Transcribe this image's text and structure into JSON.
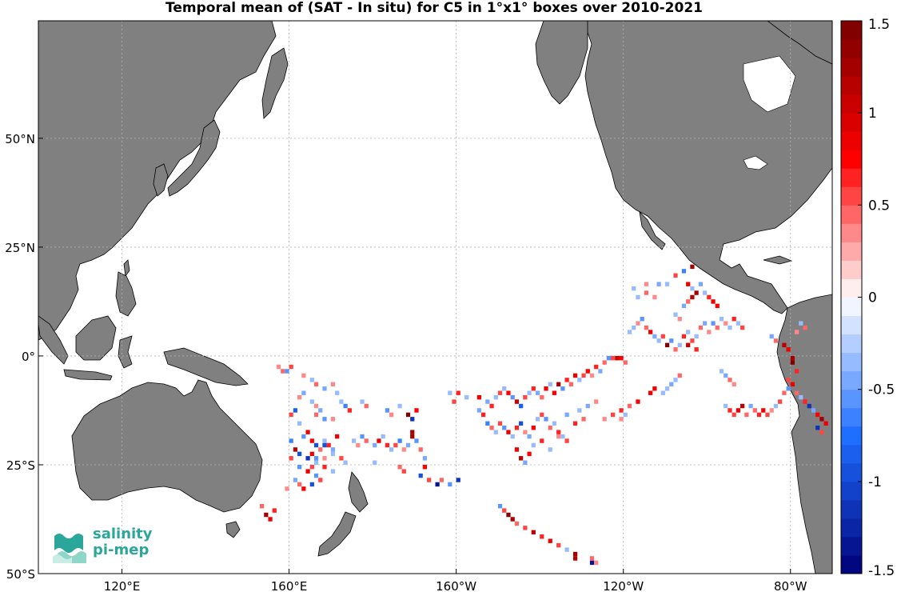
{
  "chart_data": {
    "type": "heatmap",
    "title": "Temporal mean of (SAT - In situ) for C5 in 1°x1° boxes over 2010-2021",
    "map_extent": {
      "lon": [
        100,
        290
      ],
      "lat": [
        -50,
        77
      ]
    },
    "x_ticks": [
      {
        "lon": 120,
        "label": "120°E"
      },
      {
        "lon": 160,
        "label": "160°E"
      },
      {
        "lon": 200,
        "label": "160°W"
      },
      {
        "lon": 240,
        "label": "120°W"
      },
      {
        "lon": 280,
        "label": "80°W"
      }
    ],
    "y_ticks": [
      {
        "lat": 50,
        "label": "50°N"
      },
      {
        "lat": 25,
        "label": "25°N"
      },
      {
        "lat": 0,
        "label": "0°"
      },
      {
        "lat": -25,
        "label": "25°S"
      },
      {
        "lat": -50,
        "label": "50°S"
      }
    ],
    "grid": true,
    "land_color": "#808080",
    "colorbar": {
      "range": [
        -1.5,
        1.5
      ],
      "ticks": [
        "-1.5",
        "-1",
        "-0.5",
        "0",
        "0.5",
        "1",
        "1.5"
      ],
      "tick_values": [
        -1.5,
        -1,
        -0.5,
        0,
        0.5,
        1,
        1.5
      ],
      "levels": 30,
      "colormap": "blue-white-red"
    },
    "boxes": [
      [
        165,
        -11,
        -0.3
      ],
      [
        166,
        -12,
        0.3
      ],
      [
        167,
        -13,
        -0.5
      ],
      [
        166,
        -14,
        0.4
      ],
      [
        168,
        -15,
        -0.6
      ],
      [
        170,
        -15,
        0.3
      ],
      [
        171,
        -9,
        -0.3
      ],
      [
        172,
        -11,
        -0.4
      ],
      [
        174,
        -13,
        0.6
      ],
      [
        173,
        -12,
        -0.7
      ],
      [
        163,
        -9,
        -0.5
      ],
      [
        162,
        -10,
        0.3
      ],
      [
        161,
        -13,
        -0.8
      ],
      [
        160,
        -14,
        0.5
      ],
      [
        162,
        -16,
        -0.4
      ],
      [
        164,
        -18,
        0.9
      ],
      [
        163,
        -19,
        -0.6
      ],
      [
        165,
        -20,
        0.7
      ],
      [
        166,
        -21,
        -0.9
      ],
      [
        167,
        -22,
        0.4
      ],
      [
        168,
        -20,
        -0.3
      ],
      [
        169,
        -21,
        0.6
      ],
      [
        170,
        -22,
        -0.5
      ],
      [
        171,
        -19,
        0.8
      ],
      [
        160,
        -20,
        -0.7
      ],
      [
        161,
        -22,
        1.1
      ],
      [
        162,
        -23,
        -1.0
      ],
      [
        160,
        -24,
        0.5
      ],
      [
        162,
        -26,
        -0.6
      ],
      [
        164,
        -27,
        0.8
      ],
      [
        166,
        -25,
        -0.4
      ],
      [
        168,
        -26,
        0.6
      ],
      [
        170,
        -27,
        -0.3
      ],
      [
        167,
        -29,
        0.5
      ],
      [
        165,
        -30,
        -0.9
      ],
      [
        163,
        -31,
        0.7
      ],
      [
        161,
        -29,
        -0.5
      ],
      [
        162,
        -30,
        0.4
      ],
      [
        159,
        -31,
        0.3
      ],
      [
        164,
        -24,
        -1.2
      ],
      [
        165,
        -23,
        0.9
      ],
      [
        166,
        -24,
        -0.6
      ],
      [
        168,
        -24,
        0.3
      ],
      [
        170,
        -23,
        -0.4
      ],
      [
        172,
        -24,
        0.5
      ],
      [
        173,
        -25,
        -0.3
      ],
      [
        175,
        -20,
        -0.4
      ],
      [
        176,
        -21,
        0.3
      ],
      [
        177,
        -19,
        -0.6
      ],
      [
        178,
        -20,
        0.4
      ],
      [
        180,
        -21,
        -0.5
      ],
      [
        181,
        -20,
        0.8
      ],
      [
        182,
        -19,
        -0.3
      ],
      [
        183,
        -21,
        0.6
      ],
      [
        184,
        -22,
        -0.4
      ],
      [
        185,
        -21,
        0.5
      ],
      [
        186,
        -20,
        -0.7
      ],
      [
        187,
        -22,
        0.3
      ],
      [
        188,
        -21,
        -0.5
      ],
      [
        189,
        -19,
        1.3
      ],
      [
        189,
        -18,
        1.2
      ],
      [
        190,
        -20,
        -0.6
      ],
      [
        191,
        -22,
        0.4
      ],
      [
        192,
        -24,
        -0.5
      ],
      [
        192,
        -26,
        0.7
      ],
      [
        191,
        -28,
        -0.9
      ],
      [
        193,
        -29,
        0.5
      ],
      [
        195,
        -30,
        -1.3
      ],
      [
        196,
        -29,
        0.4
      ],
      [
        198,
        -30,
        -0.6
      ],
      [
        200,
        -29,
        -1.1
      ],
      [
        186,
        -26,
        0.4
      ],
      [
        187,
        -27,
        0.5
      ],
      [
        180,
        -25,
        -0.3
      ],
      [
        157,
        -3,
        0.3
      ],
      [
        158,
        -4,
        0.4
      ],
      [
        159,
        -4,
        -0.6
      ],
      [
        160,
        -3,
        0.5
      ],
      [
        163,
        -5,
        0.3
      ],
      [
        165,
        -6,
        -0.3
      ],
      [
        166,
        -7,
        0.4
      ],
      [
        168,
        -8,
        -0.5
      ],
      [
        170,
        -7,
        0.3
      ],
      [
        177,
        -11,
        -0.3
      ],
      [
        178,
        -12,
        0.4
      ],
      [
        183,
        -13,
        -0.6
      ],
      [
        184,
        -14,
        0.3
      ],
      [
        186,
        -12,
        -0.4
      ],
      [
        188,
        -14,
        1.4
      ],
      [
        189,
        -15,
        -1.2
      ],
      [
        190,
        -13,
        0.7
      ],
      [
        199,
        -11,
        0.5
      ],
      [
        198,
        -9,
        -0.4
      ],
      [
        200,
        -9,
        0.6
      ],
      [
        202,
        -10,
        -0.3
      ],
      [
        205,
        -10,
        0.8
      ],
      [
        207,
        -11,
        -0.5
      ],
      [
        208,
        -12,
        0.6
      ],
      [
        209,
        -10,
        -0.4
      ],
      [
        210,
        -9,
        0.5
      ],
      [
        211,
        -8,
        -0.3
      ],
      [
        212,
        -9,
        0.7
      ],
      [
        213,
        -10,
        -0.6
      ],
      [
        214,
        -11,
        1.0
      ],
      [
        215,
        -12,
        -0.8
      ],
      [
        216,
        -10,
        0.5
      ],
      [
        217,
        -9,
        -0.3
      ],
      [
        218,
        -8,
        0.6
      ],
      [
        219,
        -9,
        -0.5
      ],
      [
        220,
        -10,
        0.4
      ],
      [
        221,
        -8,
        0.9
      ],
      [
        222,
        -7,
        -0.4
      ],
      [
        223,
        -9,
        0.7
      ],
      [
        224,
        -7,
        1.2
      ],
      [
        225,
        -8,
        -0.6
      ],
      [
        226,
        -6,
        0.6
      ],
      [
        227,
        -7,
        0.4
      ],
      [
        228,
        -5,
        0.9
      ],
      [
        229,
        -6,
        -0.3
      ],
      [
        230,
        -5,
        0.5
      ],
      [
        231,
        -4,
        0.7
      ],
      [
        232,
        -5,
        0.3
      ],
      [
        233,
        -3,
        0.6
      ],
      [
        234,
        -4,
        -0.5
      ],
      [
        235,
        -2,
        0.4
      ],
      [
        236,
        -1,
        -0.6
      ],
      [
        237,
        -1,
        0.5
      ],
      [
        238,
        -1,
        1.0
      ],
      [
        239,
        -1,
        0.7
      ],
      [
        240,
        -2,
        0.4
      ],
      [
        205,
        -13,
        -0.5
      ],
      [
        206,
        -14,
        0.6
      ],
      [
        207,
        -16,
        -0.7
      ],
      [
        208,
        -17,
        0.4
      ],
      [
        209,
        -18,
        -0.3
      ],
      [
        210,
        -16,
        0.5
      ],
      [
        211,
        -17,
        -0.6
      ],
      [
        212,
        -18,
        0.8
      ],
      [
        213,
        -19,
        -0.4
      ],
      [
        214,
        -17,
        0.6
      ],
      [
        215,
        -16,
        -0.9
      ],
      [
        216,
        -18,
        0.3
      ],
      [
        217,
        -19,
        -0.5
      ],
      [
        218,
        -17,
        0.7
      ],
      [
        219,
        -15,
        -0.3
      ],
      [
        220,
        -14,
        0.5
      ],
      [
        221,
        -15,
        -0.6
      ],
      [
        222,
        -17,
        0.4
      ],
      [
        223,
        -16,
        -0.3
      ],
      [
        224,
        -18,
        0.6
      ],
      [
        225,
        -19,
        -0.4
      ],
      [
        226,
        -20,
        0.5
      ],
      [
        214,
        -22,
        0.8
      ],
      [
        215,
        -24,
        1.1
      ],
      [
        216,
        -25,
        -0.5
      ],
      [
        217,
        -23,
        0.7
      ],
      [
        218,
        -21,
        -0.3
      ],
      [
        220,
        -20,
        0.6
      ],
      [
        222,
        -22,
        -0.4
      ],
      [
        224,
        -19,
        0.3
      ],
      [
        226,
        -14,
        -0.5
      ],
      [
        228,
        -16,
        0.6
      ],
      [
        229,
        -13,
        -0.3
      ],
      [
        230,
        -15,
        0.4
      ],
      [
        231,
        -12,
        -0.5
      ],
      [
        233,
        -11,
        0.3
      ],
      [
        235,
        -15,
        0.3
      ],
      [
        237,
        -14,
        0.5
      ],
      [
        239,
        -13,
        0.6
      ],
      [
        241,
        -12,
        0.4
      ],
      [
        243,
        -11,
        0.7
      ],
      [
        246,
        -9,
        0.8
      ],
      [
        247,
        -8,
        0.9
      ],
      [
        249,
        -9,
        -0.3
      ],
      [
        250,
        -8,
        -0.4
      ],
      [
        251,
        -7,
        -0.5
      ],
      [
        252,
        -6,
        -0.3
      ],
      [
        253,
        -5,
        0.4
      ],
      [
        239,
        -15,
        0.3
      ],
      [
        240,
        -14,
        -0.3
      ],
      [
        241,
        5,
        -0.4
      ],
      [
        242,
        6,
        -0.3
      ],
      [
        243,
        7,
        0.3
      ],
      [
        244,
        8,
        -0.6
      ],
      [
        245,
        6,
        0.4
      ],
      [
        246,
        5,
        0.9
      ],
      [
        247,
        4,
        -0.5
      ],
      [
        248,
        3,
        -0.3
      ],
      [
        249,
        4,
        0.5
      ],
      [
        250,
        2,
        1.4
      ],
      [
        251,
        3,
        -0.6
      ],
      [
        252,
        1,
        0.4
      ],
      [
        253,
        2,
        -0.3
      ],
      [
        254,
        4,
        0.6
      ],
      [
        255,
        5,
        -0.4
      ],
      [
        256,
        3,
        0.5
      ],
      [
        257,
        4,
        -0.3
      ],
      [
        258,
        6,
        0.4
      ],
      [
        259,
        7,
        -0.5
      ],
      [
        260,
        5,
        0.3
      ],
      [
        261,
        7,
        -0.6
      ],
      [
        262,
        6,
        0.4
      ],
      [
        263,
        8,
        -0.3
      ],
      [
        264,
        7,
        0.3
      ],
      [
        265,
        6,
        -0.4
      ],
      [
        266,
        8,
        0.6
      ],
      [
        267,
        7,
        -0.3
      ],
      [
        268,
        6,
        0.5
      ],
      [
        255,
        2,
        1.0
      ],
      [
        257,
        1,
        0.6
      ],
      [
        252,
        9,
        -0.4
      ],
      [
        253,
        8,
        0.3
      ],
      [
        254,
        11,
        -0.5
      ],
      [
        255,
        12,
        0.4
      ],
      [
        256,
        13,
        1.1
      ],
      [
        257,
        14,
        1.2
      ],
      [
        256,
        15,
        -0.4
      ],
      [
        258,
        16,
        -0.5
      ],
      [
        259,
        14,
        -0.3
      ],
      [
        260,
        13,
        0.6
      ],
      [
        261,
        12,
        0.8
      ],
      [
        262,
        11,
        0.7
      ],
      [
        255,
        16,
        0.9
      ],
      [
        250,
        16,
        -0.3
      ],
      [
        248,
        16,
        -0.5
      ],
      [
        245,
        16,
        0.3
      ],
      [
        242,
        15,
        -0.4
      ],
      [
        243,
        13,
        -0.3
      ],
      [
        245,
        14,
        0.4
      ],
      [
        247,
        13,
        0.3
      ],
      [
        252,
        18,
        0.5
      ],
      [
        254,
        19,
        -0.7
      ],
      [
        256,
        20,
        1.2
      ],
      [
        263,
        -4,
        -0.3
      ],
      [
        264,
        -5,
        -0.5
      ],
      [
        265,
        -6,
        0.4
      ],
      [
        266,
        -7,
        0.3
      ],
      [
        264,
        -12,
        -0.4
      ],
      [
        265,
        -13,
        0.6
      ],
      [
        266,
        -14,
        0.5
      ],
      [
        267,
        -13,
        0.8
      ],
      [
        268,
        -12,
        1.1
      ],
      [
        269,
        -14,
        0.4
      ],
      [
        270,
        -12,
        -0.5
      ],
      [
        271,
        -13,
        0.4
      ],
      [
        272,
        -14,
        0.6
      ],
      [
        273,
        -13,
        0.8
      ],
      [
        274,
        -14,
        0.5
      ],
      [
        275,
        -13,
        0.3
      ],
      [
        276,
        -12,
        -0.4
      ],
      [
        277,
        -11,
        0.5
      ],
      [
        278,
        -9,
        0.4
      ],
      [
        279,
        -8,
        -0.6
      ],
      [
        280,
        -7,
        0.9
      ],
      [
        281,
        -9,
        0.4
      ],
      [
        282,
        -10,
        -0.3
      ],
      [
        283,
        -11,
        0.6
      ],
      [
        284,
        -12,
        -1.1
      ],
      [
        285,
        -13,
        -0.5
      ],
      [
        286,
        -14,
        0.7
      ],
      [
        287,
        -15,
        1.2
      ],
      [
        288,
        -16,
        0.8
      ],
      [
        278,
        2,
        1.1
      ],
      [
        279,
        1,
        0.8
      ],
      [
        280,
        -1,
        1.3
      ],
      [
        280,
        -2,
        1.4
      ],
      [
        281,
        -4,
        0.6
      ],
      [
        279,
        -6,
        0.5
      ],
      [
        281,
        5,
        0.3
      ],
      [
        283,
        6,
        0.4
      ],
      [
        282,
        7,
        -0.3
      ],
      [
        276,
        3,
        0.4
      ],
      [
        275,
        4,
        -0.5
      ],
      [
        286,
        -17,
        -1.2
      ],
      [
        287,
        -18,
        0.5
      ],
      [
        210,
        -35,
        -0.6
      ],
      [
        211,
        -36,
        0.5
      ],
      [
        212,
        -37,
        1.4
      ],
      [
        213,
        -38,
        1.2
      ],
      [
        214,
        -39,
        0.4
      ],
      [
        216,
        -40,
        0.5
      ],
      [
        218,
        -41,
        1.1
      ],
      [
        220,
        -42,
        0.6
      ],
      [
        222,
        -43,
        0.8
      ],
      [
        224,
        -44,
        0.5
      ],
      [
        226,
        -45,
        -0.3
      ],
      [
        228,
        -46,
        1.3
      ],
      [
        228,
        -47,
        1.1
      ],
      [
        232,
        -48,
        -1.4
      ],
      [
        233,
        -48,
        0.3
      ],
      [
        232,
        -47,
        0.4
      ],
      [
        153,
        -35,
        0.4
      ],
      [
        154,
        -37,
        1.3
      ],
      [
        155,
        -38,
        0.9
      ],
      [
        156,
        -36,
        0.6
      ],
      [
        168,
        -21,
        -1.0
      ],
      [
        165,
        -26,
        0.5
      ],
      [
        166,
        -28,
        -0.6
      ]
    ]
  },
  "logo": {
    "line1": "salinity",
    "line2": "pi-mep"
  }
}
